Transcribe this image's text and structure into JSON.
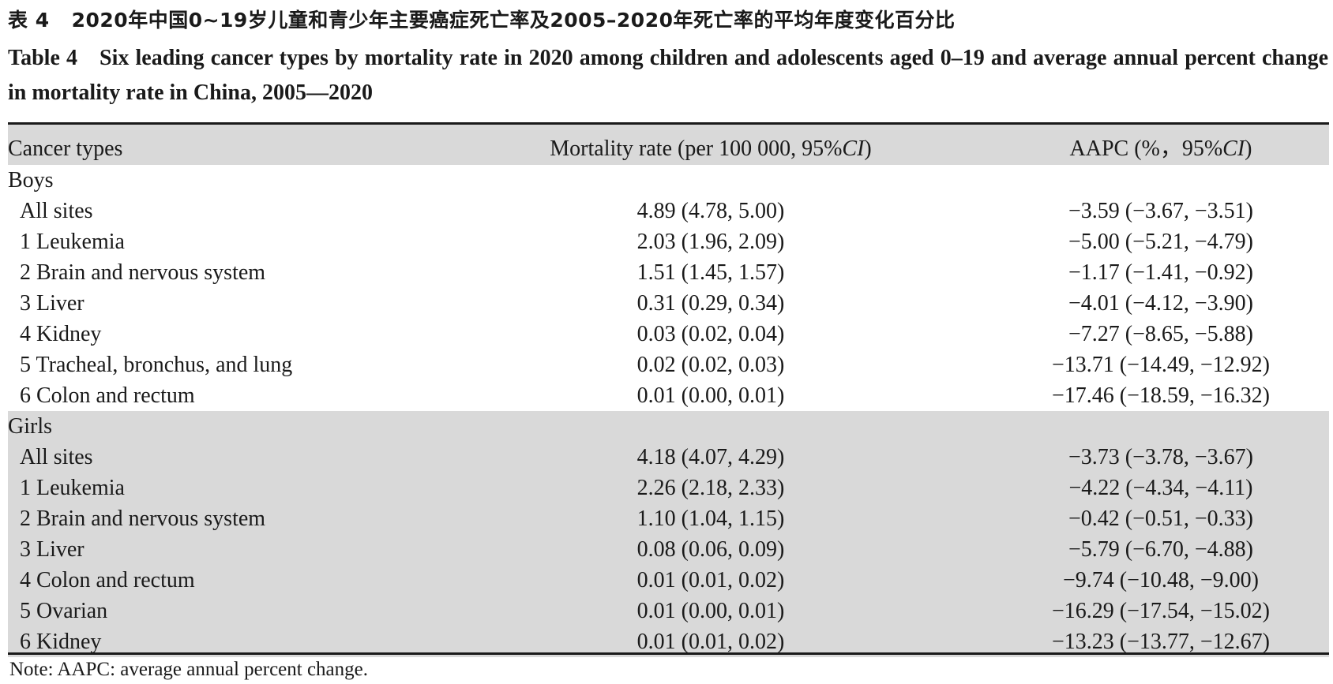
{
  "caption": {
    "cn_label": "表 4",
    "cn_title": "2020年中国0~19岁儿童和青少年主要癌症死亡率及2005–2020年死亡率的平均年度变化百分比",
    "en_label": "Table 4",
    "en_title": "Six leading cancer types by mortality rate in 2020 among children and adolescents aged 0–19 and average annual percent change in mortality rate in China, 2005—2020"
  },
  "table": {
    "headers": {
      "cancer_types": "Cancer types",
      "mortality_prefix": "Mortality rate (per 100 000, 95%",
      "mortality_ci": "CI",
      "mortality_suffix": ")",
      "aapc_prefix": "AAPC (%，95%",
      "aapc_ci": "CI",
      "aapc_suffix": ")"
    },
    "groups": [
      {
        "name": "Boys",
        "rows": [
          {
            "type": "All sites",
            "rate": "4.89 (4.78, 5.00)",
            "aapc": "−3.59 (−3.67, −3.51)"
          },
          {
            "type": "1 Leukemia",
            "rate": "2.03 (1.96, 2.09)",
            "aapc": "−5.00 (−5.21, −4.79)"
          },
          {
            "type": "2 Brain and nervous system",
            "rate": "1.51 (1.45, 1.57)",
            "aapc": "−1.17 (−1.41, −0.92)"
          },
          {
            "type": "3 Liver",
            "rate": "0.31 (0.29, 0.34)",
            "aapc": "−4.01 (−4.12, −3.90)"
          },
          {
            "type": "4 Kidney",
            "rate": "0.03 (0.02, 0.04)",
            "aapc": "−7.27 (−8.65, −5.88)"
          },
          {
            "type": "5 Tracheal, bronchus, and lung",
            "rate": "0.02 (0.02, 0.03)",
            "aapc": "−13.71 (−14.49, −12.92)"
          },
          {
            "type": "6 Colon and rectum",
            "rate": "0.01 (0.00, 0.01)",
            "aapc": "−17.46 (−18.59, −16.32)"
          }
        ]
      },
      {
        "name": "Girls",
        "rows": [
          {
            "type": "All sites",
            "rate": "4.18 (4.07, 4.29)",
            "aapc": "−3.73 (−3.78, −3.67)"
          },
          {
            "type": "1 Leukemia",
            "rate": "2.26 (2.18, 2.33)",
            "aapc": "−4.22 (−4.34, −4.11)"
          },
          {
            "type": "2 Brain and nervous system",
            "rate": "1.10 (1.04, 1.15)",
            "aapc": "−0.42 (−0.51, −0.33)"
          },
          {
            "type": "3 Liver",
            "rate": "0.08 (0.06, 0.09)",
            "aapc": "−5.79 (−6.70, −4.88)"
          },
          {
            "type": "4 Colon and rectum",
            "rate": "0.01 (0.01, 0.02)",
            "aapc": "−9.74 (−10.48, −9.00)"
          },
          {
            "type": "5 Ovarian",
            "rate": "0.01 (0.00, 0.01)",
            "aapc": "−16.29 (−17.54, −15.02)"
          },
          {
            "type": "6 Kidney",
            "rate": "0.01 (0.01, 0.02)",
            "aapc": "−13.23 (−13.77, −12.67)"
          }
        ]
      }
    ]
  },
  "note": "Note: AAPC: average annual percent change."
}
